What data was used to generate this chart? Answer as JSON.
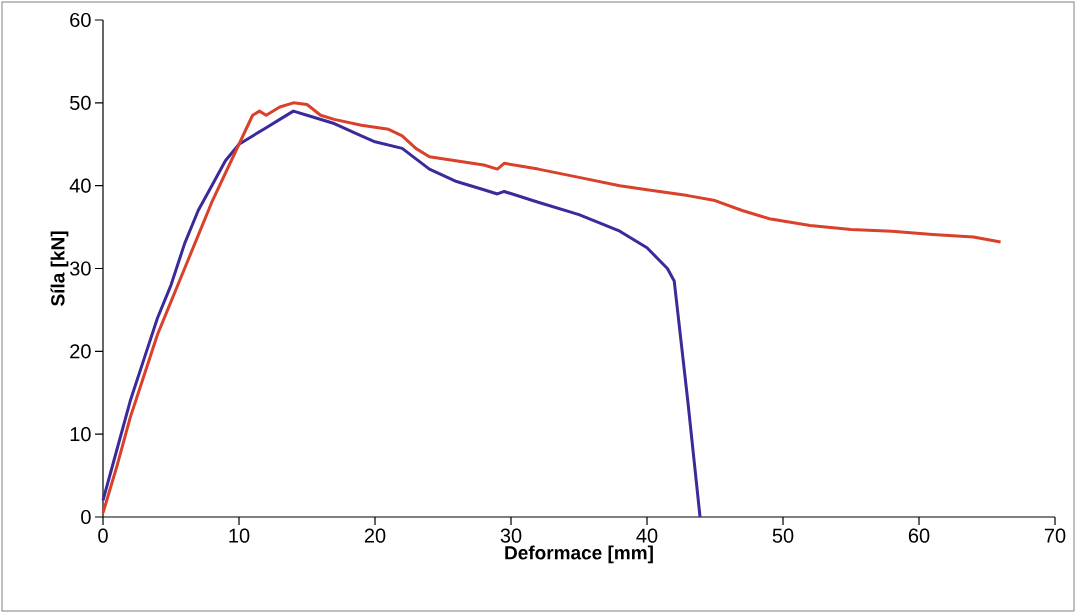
{
  "chart_data": {
    "type": "line",
    "xlabel": "Deformace [mm]",
    "ylabel": "Síla [kN]",
    "xlim": [
      0,
      70
    ],
    "ylim": [
      0,
      60
    ],
    "xticks": [
      0,
      10,
      20,
      30,
      40,
      50,
      60,
      70
    ],
    "yticks": [
      0,
      10,
      20,
      30,
      40,
      50,
      60
    ],
    "marker": "none",
    "line_style": "solid",
    "series": [
      {
        "color": "#3a2a9a",
        "x": [
          0,
          1,
          2,
          3,
          4,
          5,
          6,
          7,
          8,
          9,
          10,
          11,
          12,
          13,
          14,
          15,
          17,
          19,
          20,
          22,
          24,
          26,
          28,
          29,
          29.5,
          32,
          35,
          38,
          40,
          41.5,
          42,
          43,
          43.9
        ],
        "values": [
          2,
          8,
          14,
          19,
          24,
          28,
          33,
          37,
          40,
          43,
          45,
          46,
          47,
          48,
          49,
          48.5,
          47.5,
          46,
          45.3,
          44.5,
          42,
          40.5,
          39.5,
          39,
          39.3,
          38,
          36.5,
          34.5,
          32.5,
          30,
          28.5,
          14,
          0
        ]
      },
      {
        "color": "#d9412b",
        "x": [
          0,
          1,
          2,
          3,
          4,
          5,
          6,
          7,
          8,
          9,
          10,
          11,
          11.5,
          12,
          13,
          14,
          15,
          16,
          17,
          19,
          21,
          22,
          23,
          24,
          26,
          28,
          29,
          29.5,
          32,
          35,
          38,
          40,
          43,
          45,
          47,
          49,
          52,
          55,
          58,
          61,
          64,
          66
        ],
        "values": [
          0.5,
          6,
          12,
          17,
          22,
          26,
          30,
          34,
          38,
          41.5,
          45,
          48.5,
          49,
          48.5,
          49.5,
          50,
          49.8,
          48.5,
          48,
          47.3,
          46.8,
          46,
          44.5,
          43.5,
          43,
          42.5,
          42,
          42.7,
          42,
          41,
          40,
          39.5,
          38.8,
          38.2,
          37,
          36,
          35.2,
          34.7,
          34.5,
          34.1,
          33.8,
          33.2
        ]
      }
    ]
  }
}
